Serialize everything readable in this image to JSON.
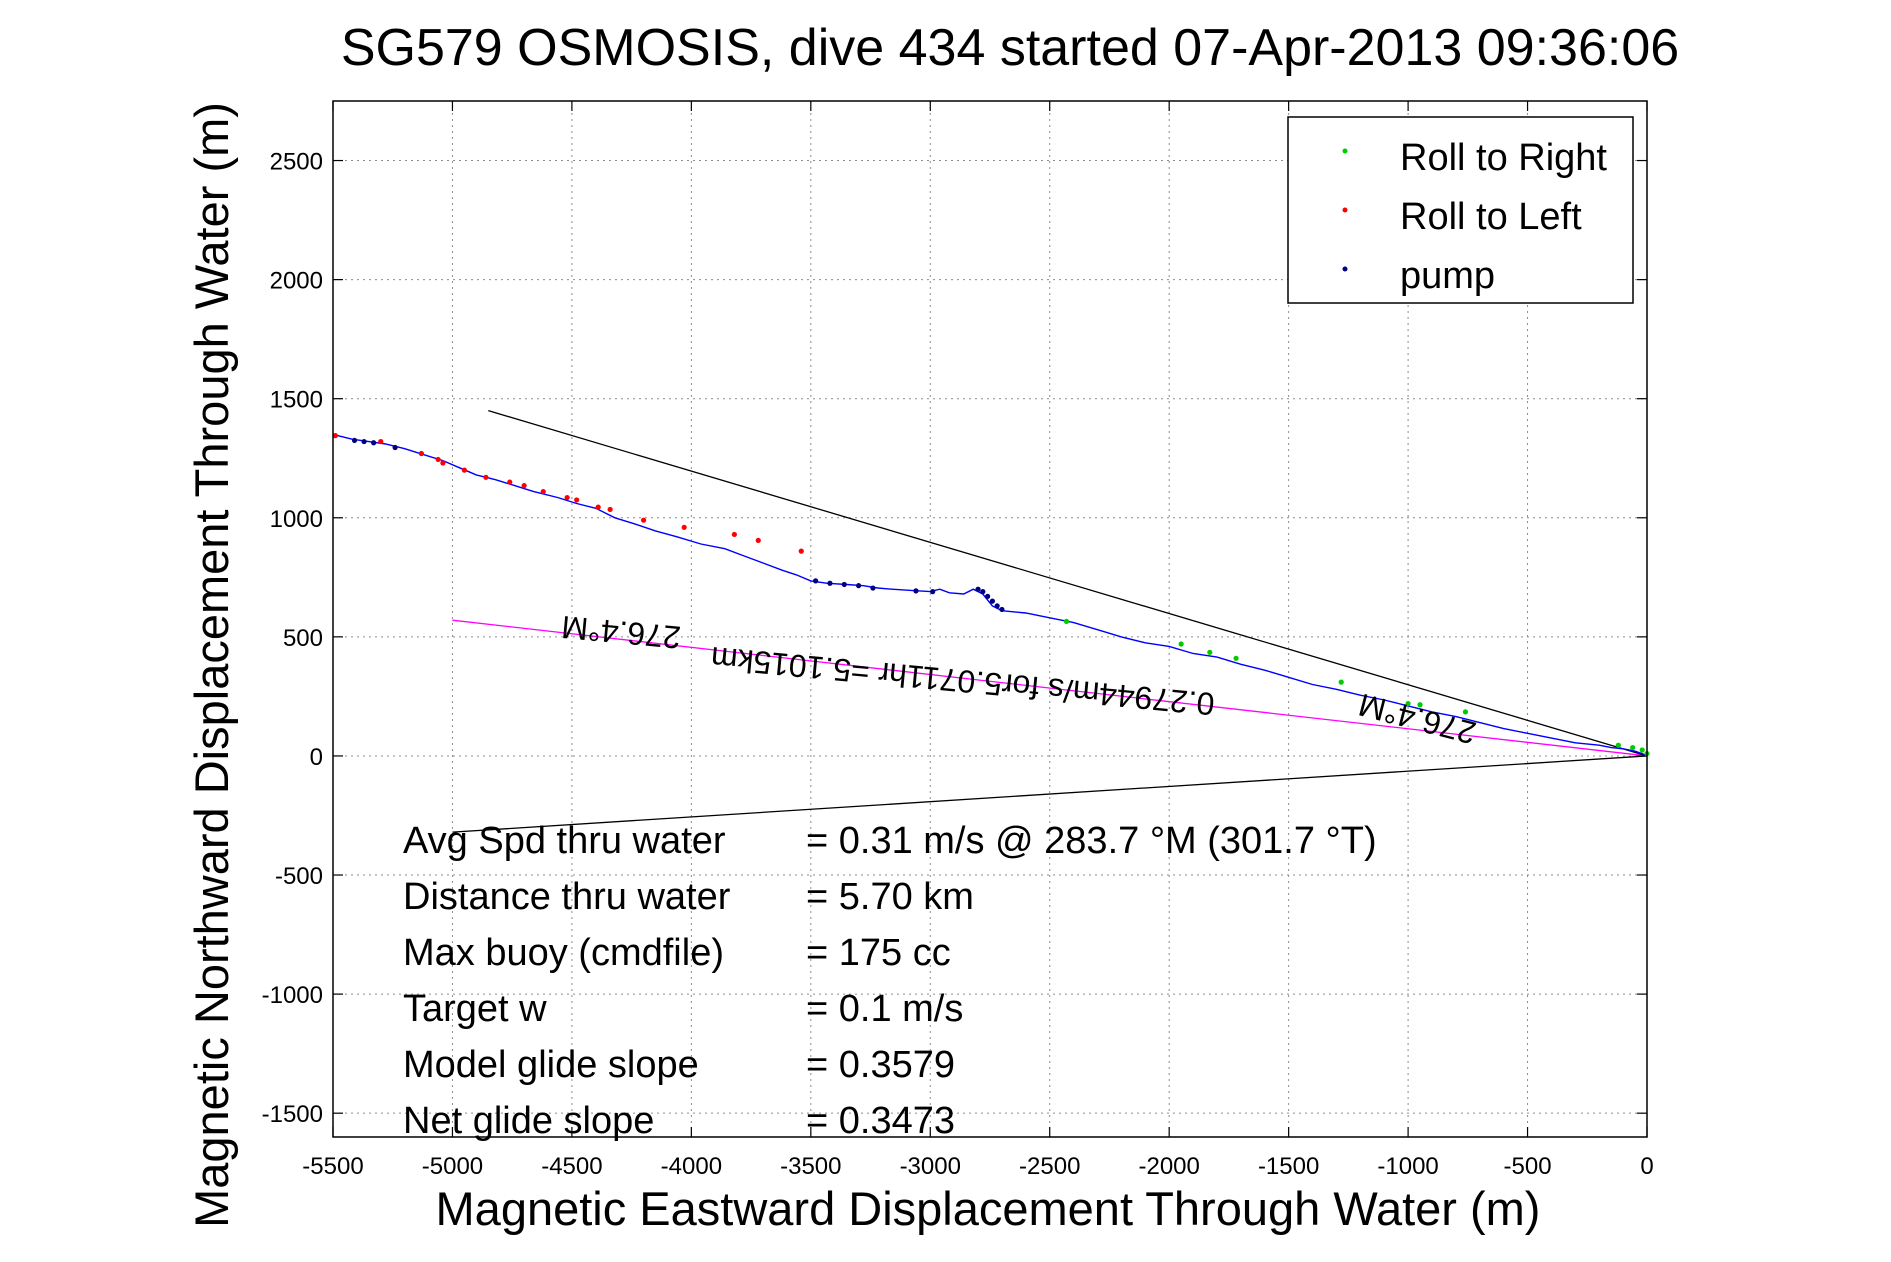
{
  "chart_data": {
    "type": "line",
    "title": "SG579 OSMOSIS, dive 434 started 07-Apr-2013 09:36:06",
    "xlabel": "Magnetic Eastward Displacement Through Water (m)",
    "ylabel": "Magnetic Northward Displacement Through Water (m)",
    "xlim": [
      -5500,
      0
    ],
    "ylim": [
      -1600,
      2750
    ],
    "xticks": [
      -5500,
      -5000,
      -4500,
      -4000,
      -3500,
      -3000,
      -2500,
      -2000,
      -1500,
      -1000,
      -500,
      0
    ],
    "yticks": [
      -1500,
      -1000,
      -500,
      0,
      500,
      1000,
      1500,
      2000,
      2500
    ],
    "grid": true,
    "legend_position": "top-right",
    "colors": {
      "track": "#0000ff",
      "roll_right": "#00cc00",
      "roll_left": "#ff0000",
      "pump": "#000080",
      "heading_line": "#ff00ff",
      "cone_lines": "#000000"
    },
    "series": [
      {
        "name": "track",
        "x": [
          -5500,
          -5420,
          -5350,
          -5280,
          -5200,
          -5120,
          -5040,
          -4970,
          -4900,
          -4820,
          -4740,
          -4660,
          -4560,
          -4480,
          -4400,
          -4320,
          -4240,
          -4150,
          -4060,
          -3960,
          -3860,
          -3780,
          -3700,
          -3620,
          -3560,
          -3500,
          -3430,
          -3350,
          -3280,
          -3220,
          -3160,
          -3080,
          -3000,
          -2960,
          -2920,
          -2860,
          -2820,
          -2780,
          -2740,
          -2700,
          -2600,
          -2500,
          -2400,
          -2300,
          -2200,
          -2100,
          -2000,
          -1900,
          -1800,
          -1700,
          -1600,
          -1500,
          -1400,
          -1300,
          -1200,
          -1100,
          -1000,
          -900,
          -800,
          -700,
          -600,
          -500,
          -400,
          -300,
          -200,
          -150,
          -100,
          -50,
          -20,
          0
        ],
        "y": [
          1350,
          1330,
          1320,
          1310,
          1290,
          1265,
          1240,
          1210,
          1180,
          1160,
          1135,
          1110,
          1085,
          1060,
          1040,
          1000,
          975,
          945,
          920,
          890,
          870,
          840,
          810,
          780,
          760,
          735,
          725,
          720,
          715,
          705,
          700,
          695,
          690,
          700,
          685,
          680,
          700,
          680,
          630,
          610,
          600,
          580,
          560,
          530,
          500,
          475,
          460,
          430,
          415,
          385,
          360,
          330,
          300,
          280,
          255,
          235,
          210,
          185,
          165,
          140,
          115,
          95,
          75,
          55,
          45,
          35,
          30,
          20,
          10,
          0
        ]
      }
    ],
    "markers": {
      "roll_right": {
        "label": "Roll to Right",
        "x": [
          -2430,
          -1950,
          -1830,
          -1720,
          -1280,
          -1000,
          -950,
          -760,
          -120,
          -60,
          -20,
          0
        ],
        "y": [
          565,
          470,
          435,
          410,
          310,
          220,
          215,
          185,
          45,
          35,
          25,
          10
        ]
      },
      "roll_left": {
        "label": "Roll to Left",
        "x": [
          -5490,
          -5300,
          -5130,
          -5060,
          -5040,
          -4950,
          -4860,
          -4760,
          -4700,
          -4620,
          -4520,
          -4480,
          -4390,
          -4340,
          -4200,
          -4030,
          -3820,
          -3720,
          -3540
        ],
        "y": [
          1345,
          1320,
          1270,
          1245,
          1230,
          1200,
          1170,
          1150,
          1135,
          1110,
          1085,
          1075,
          1045,
          1035,
          990,
          960,
          930,
          905,
          860
        ]
      },
      "pump": {
        "label": "pump",
        "x": [
          -5410,
          -5370,
          -5330,
          -5240,
          -3480,
          -3420,
          -3360,
          -3300,
          -3240,
          -3060,
          -2990,
          -2800,
          -2780,
          -2760,
          -2740,
          -2720,
          -2700
        ],
        "y": [
          1325,
          1320,
          1315,
          1295,
          735,
          725,
          720,
          715,
          705,
          693,
          690,
          700,
          690,
          670,
          650,
          630,
          615
        ]
      }
    },
    "reference_lines": [
      {
        "role": "heading",
        "x": [
          -5000,
          0
        ],
        "y": [
          570,
          0
        ]
      },
      {
        "role": "cone-upper",
        "x": [
          -4850,
          0
        ],
        "y": [
          1450,
          0
        ]
      },
      {
        "role": "cone-lower",
        "x": [
          -5000,
          0
        ],
        "y": [
          -320,
          0
        ]
      }
    ],
    "annotations": {
      "heading_upper": {
        "text": "276.4°M",
        "x": -4290,
        "y": 565
      },
      "heading_lower": {
        "text": "276.4°M",
        "x": -950,
        "y": 200
      },
      "speed_note": {
        "text": "0.27944m/s for5.0711hr =5.1015km",
        "x": -2860,
        "y": 360
      }
    },
    "stats": [
      {
        "label": "Avg Spd thru water",
        "value": "=  0.31 m/s @ 283.7 °M (301.7 °T)"
      },
      {
        "label": "Distance thru water",
        "value": "=  5.70 km"
      },
      {
        "label": "Max buoy (cmdfile)",
        "value": "= 175 cc"
      },
      {
        "label": "Target w",
        "value": "= 0.1 m/s"
      },
      {
        "label": "Model glide slope",
        "value": "= 0.3579"
      },
      {
        "label": "Net glide slope",
        "value": "= 0.3473"
      }
    ]
  }
}
